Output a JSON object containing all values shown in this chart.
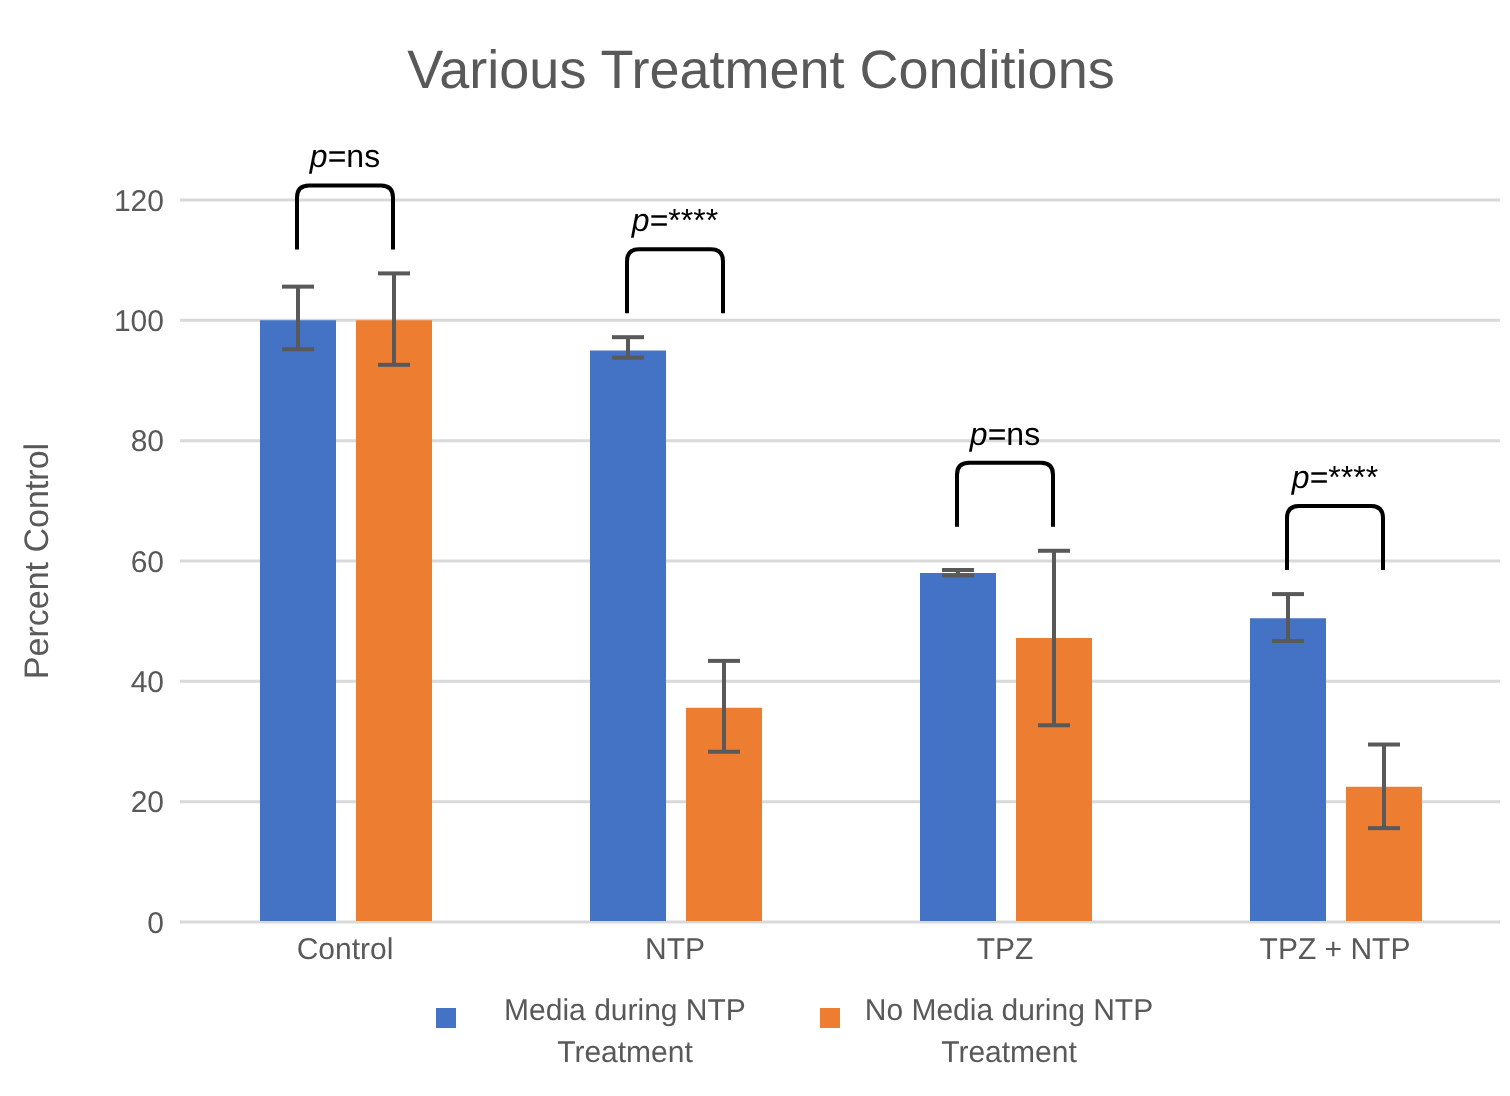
{
  "chart_data": {
    "type": "bar",
    "title": "Various Treatment Conditions",
    "ylabel": "Percent Control",
    "categories": [
      "Control",
      "NTP",
      "TPZ",
      "TPZ + NTP"
    ],
    "series": [
      {
        "name": "Media during NTP Treatment",
        "color": "#4472c4",
        "values": [
          100,
          95,
          58,
          50.5
        ],
        "errors": [
          [
            95.2,
            105.6
          ],
          [
            93.8,
            97.2
          ],
          [
            57.6,
            58.5
          ],
          [
            46.7,
            54.5
          ]
        ]
      },
      {
        "name": "No Media during NTP Treatment",
        "color": "#ed7d31",
        "values": [
          100,
          35.6,
          47.2,
          22.5
        ],
        "errors": [
          [
            92.6,
            107.8
          ],
          [
            28.3,
            43.4
          ],
          [
            32.7,
            61.7
          ],
          [
            15.6,
            29.5
          ]
        ]
      }
    ],
    "ylim": [
      0,
      120
    ],
    "yticks": [
      0,
      20,
      40,
      60,
      80,
      100,
      120
    ],
    "grid": "y",
    "legend": "bottom",
    "annotations": [
      "p=ns",
      "p=****",
      "p=ns",
      "p=****"
    ]
  }
}
